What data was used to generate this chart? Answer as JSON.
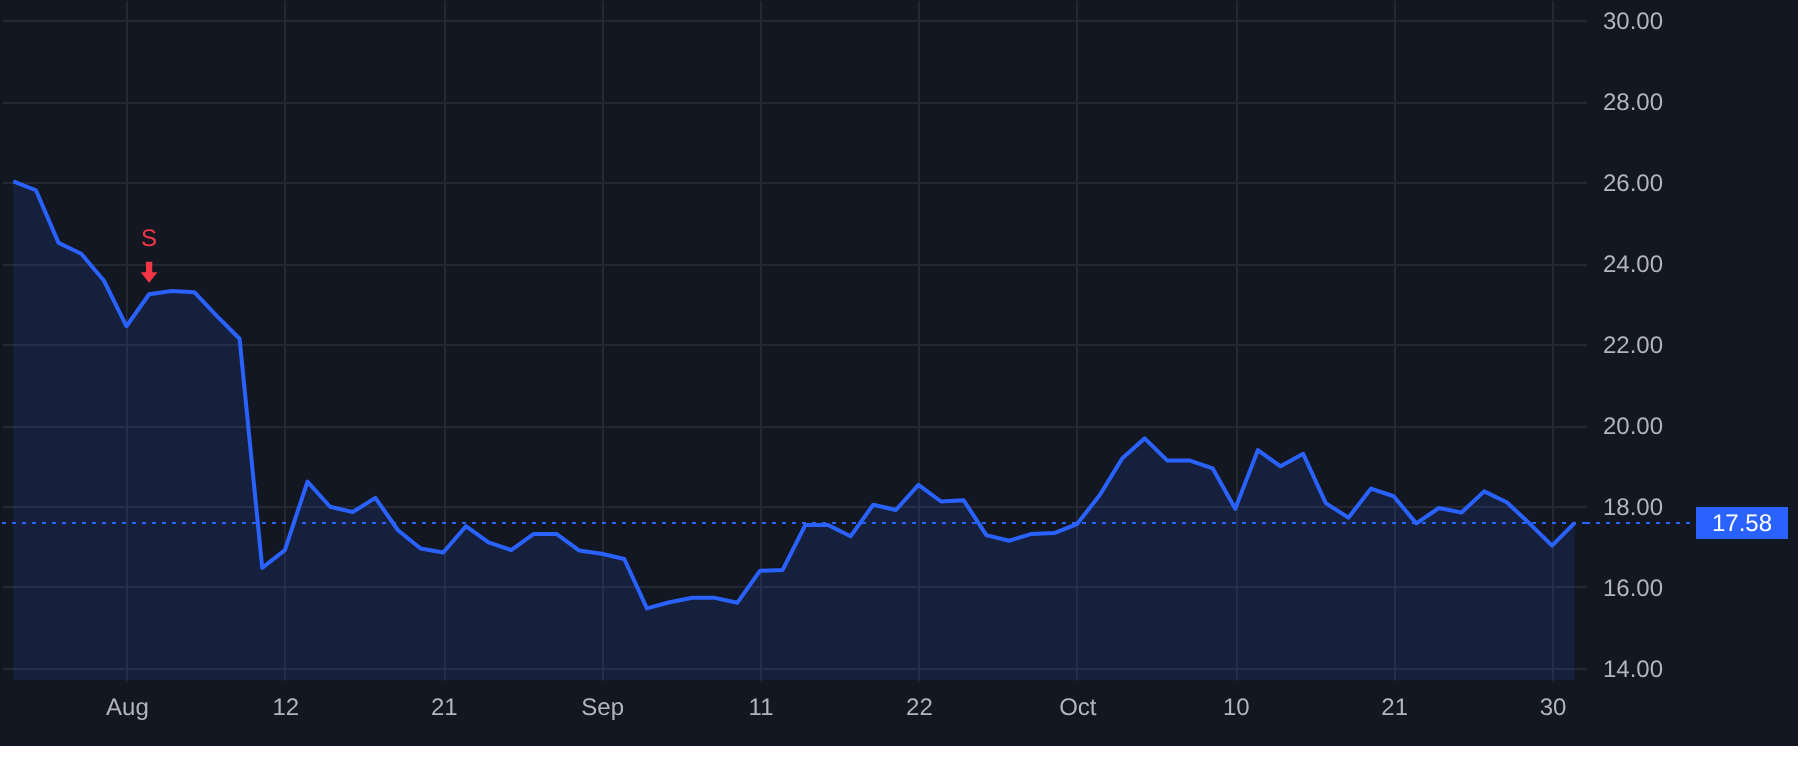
{
  "chart_data": {
    "type": "area",
    "categories": [
      null,
      null,
      null,
      null,
      null,
      "Aug",
      null,
      null,
      null,
      null,
      null,
      null,
      "12",
      null,
      null,
      null,
      null,
      null,
      null,
      "21",
      null,
      null,
      null,
      null,
      null,
      null,
      "Sep",
      null,
      null,
      null,
      null,
      null,
      null,
      "11",
      null,
      null,
      null,
      null,
      null,
      null,
      "22",
      null,
      null,
      null,
      null,
      null,
      null,
      "Oct",
      null,
      null,
      null,
      null,
      null,
      null,
      "10",
      null,
      null,
      null,
      null,
      null,
      null,
      "21",
      null,
      null,
      null,
      null,
      null,
      null,
      "30",
      null
    ],
    "series": [
      {
        "color": "#2962ff",
        "values": [
          26.02,
          25.8,
          24.5,
          24.23,
          23.57,
          22.44,
          23.23,
          23.31,
          23.28,
          22.69,
          22.13,
          16.47,
          16.91,
          18.6,
          17.98,
          17.85,
          18.2,
          17.4,
          16.95,
          16.85,
          17.5,
          17.1,
          16.91,
          17.31,
          17.31,
          16.9,
          16.82,
          16.69,
          15.47,
          15.62,
          15.73,
          15.73,
          15.61,
          16.4,
          16.42,
          17.53,
          17.53,
          17.25,
          18.03,
          17.9,
          18.52,
          18.11,
          18.14,
          17.28,
          17.14,
          17.31,
          17.33,
          17.55,
          18.26,
          19.17,
          19.67,
          19.12,
          19.12,
          18.93,
          17.93,
          19.38,
          18.98,
          19.29,
          18.07,
          17.71,
          18.43,
          18.24,
          17.57,
          17.95,
          17.84,
          18.36,
          18.09,
          17.57,
          17.02,
          17.58
        ]
      }
    ],
    "ylim": [
      13.7,
      30.5
    ],
    "yticks": [
      {
        "value": 14,
        "label": "14.00"
      },
      {
        "value": 16,
        "label": "16.00"
      },
      {
        "value": 18,
        "label": "18.00"
      },
      {
        "value": 20,
        "label": "20.00"
      },
      {
        "value": 22,
        "label": "22.00"
      },
      {
        "value": 24,
        "label": "24.00"
      },
      {
        "value": 26,
        "label": "26.00"
      },
      {
        "value": 28,
        "label": "28.00"
      },
      {
        "value": 30,
        "label": "30.00"
      }
    ],
    "annotations": [
      {
        "text": "S",
        "y": 23.23
      }
    ],
    "ref_lines": [
      {
        "axis": "y",
        "value": 17.58,
        "label": "17.58",
        "color": "#2962ff",
        "line_style": "dotted"
      }
    ],
    "grid": true
  }
}
